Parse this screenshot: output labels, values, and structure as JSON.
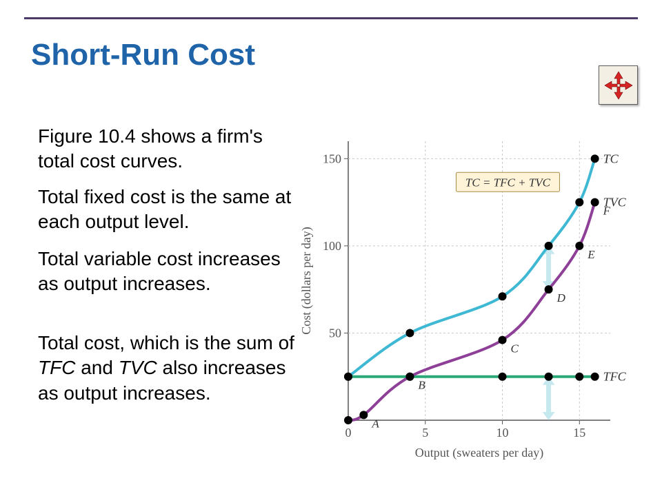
{
  "title": "Short-Run Cost",
  "paragraphs": {
    "p1": "Figure 10.4 shows a firm's total cost curves.",
    "p2": "Total fixed cost is the same at each output level.",
    "p3": "Total variable cost increases as output increases.",
    "p4a": "Total cost, which is the sum of ",
    "p4b": "TFC",
    "p4c": " and ",
    "p4d": "TVC",
    "p4e": " also increases as output increases."
  },
  "icon": {
    "name": "move-arrows-icon",
    "arrow_color": "#d62424",
    "bg_color": "#f3efe4"
  },
  "chart": {
    "type": "line",
    "xlabel": "Output (sweaters per day)",
    "ylabel": "Cost (dollars per day)",
    "x_min": 0,
    "x_max": 17,
    "y_min": 0,
    "y_max": 160,
    "x_ticks": [
      0,
      5,
      10,
      15
    ],
    "y_ticks": [
      50,
      100,
      150
    ],
    "axis_color": "#555555",
    "grid_color": "#c9c9c9",
    "tick_fontsize": 18,
    "label_fontsize": 18,
    "dot_color": "#000000",
    "dot_radius": 6,
    "formula": "TC = TFC + TVC",
    "formula_box_bg": "#fff3d8",
    "formula_box_border": "#a88a44",
    "arrow_fill": "#bfe7ee",
    "arrow_positions_x": [
      13,
      13
    ],
    "series": {
      "tfc": {
        "label": "TFC",
        "color": "#2aa876",
        "width": 4,
        "x": [
          0,
          4,
          10,
          13,
          15,
          16
        ],
        "y": [
          25,
          25,
          25,
          25,
          25,
          25
        ]
      },
      "tvc": {
        "label": "TVC",
        "color": "#8e3f97",
        "width": 4,
        "x": [
          0,
          1,
          4,
          10,
          13,
          15,
          16
        ],
        "y": [
          0,
          3,
          25,
          46,
          75,
          100,
          125
        ],
        "point_labels": [
          "",
          "A",
          "B",
          "C",
          "D",
          "E",
          "F"
        ]
      },
      "tc": {
        "label": "TC",
        "color": "#3fb8d4",
        "width": 4,
        "x": [
          0,
          4,
          10,
          13,
          15,
          16
        ],
        "y": [
          25,
          50,
          71,
          100,
          125,
          150
        ]
      }
    }
  }
}
